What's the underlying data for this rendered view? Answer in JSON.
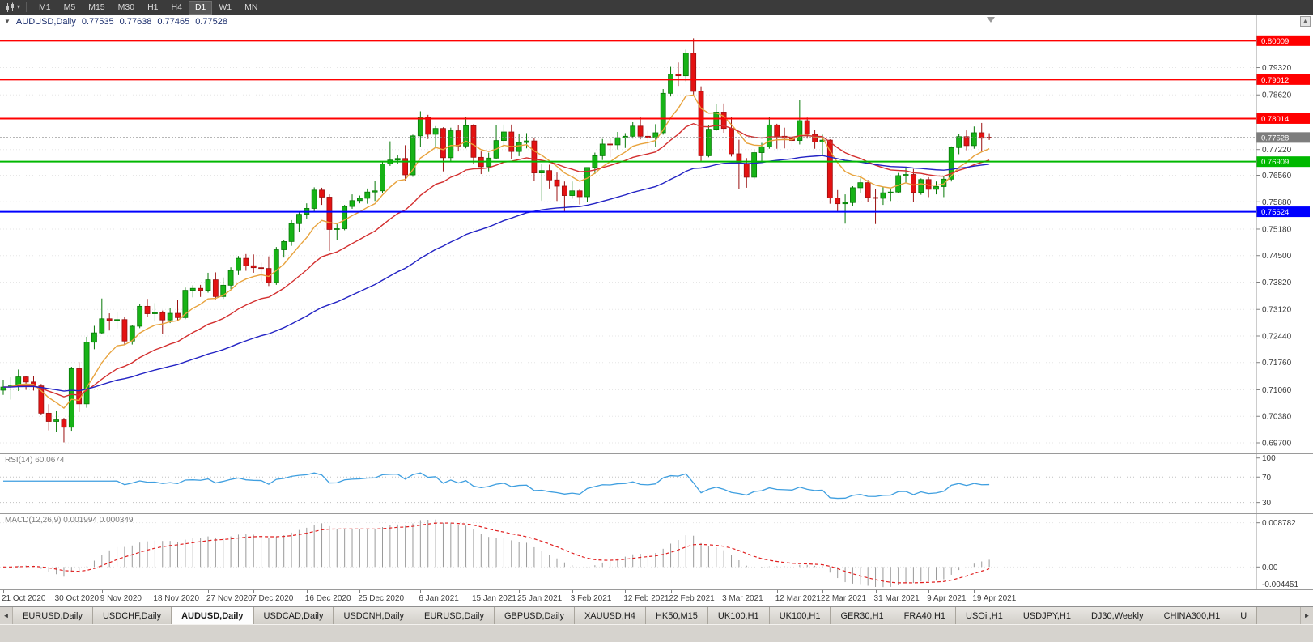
{
  "toolbar": {
    "timeframes": [
      "M1",
      "M5",
      "M15",
      "M30",
      "H1",
      "H4",
      "D1",
      "W1",
      "MN"
    ],
    "active_timeframe": "D1"
  },
  "icons": {
    "one_click_toggle": "▼",
    "chart_type_caret": "▾",
    "chart_scroll_up": "▲",
    "tab_scroll_left": "◄",
    "tab_scroll_right": "►"
  },
  "symbol_info": {
    "symbol": "AUDUSD,Daily",
    "open": "0.77535",
    "high": "0.77638",
    "low": "0.77465",
    "close": "0.77528"
  },
  "chart_data": {
    "type": "candlestick",
    "symbol": "AUDUSD",
    "timeframe": "Daily",
    "y_axis_labels": [
      "0.79320",
      "0.78620",
      "0.77220",
      "0.76560",
      "0.75880",
      "0.75180",
      "0.74500",
      "0.73820",
      "0.73120",
      "0.72440",
      "0.71760",
      "0.71060",
      "0.70380",
      "0.69700"
    ],
    "x_axis_labels": [
      {
        "i": 0,
        "label": "21 Oct 2020"
      },
      {
        "i": 7,
        "label": "30 Oct 2020"
      },
      {
        "i": 13,
        "label": "9 Nov 2020"
      },
      {
        "i": 20,
        "label": "18 Nov 2020"
      },
      {
        "i": 27,
        "label": "27 Nov 2020"
      },
      {
        "i": 33,
        "label": "7 Dec 2020"
      },
      {
        "i": 40,
        "label": "16 Dec 2020"
      },
      {
        "i": 47,
        "label": "25 Dec 2020"
      },
      {
        "i": 55,
        "label": "6 Jan 2021"
      },
      {
        "i": 62,
        "label": "15 Jan 2021"
      },
      {
        "i": 68,
        "label": "25 Jan 2021"
      },
      {
        "i": 75,
        "label": "3 Feb 2021"
      },
      {
        "i": 82,
        "label": "12 Feb 2021"
      },
      {
        "i": 88,
        "label": "22 Feb 2021"
      },
      {
        "i": 95,
        "label": "3 Mar 2021"
      },
      {
        "i": 102,
        "label": "12 Mar 2021"
      },
      {
        "i": 108,
        "label": "22 Mar 2021"
      },
      {
        "i": 115,
        "label": "31 Mar 2021"
      },
      {
        "i": 122,
        "label": "9 Apr 2021"
      },
      {
        "i": 128,
        "label": "19 Apr 2021"
      }
    ],
    "price_lines": [
      {
        "value": 0.80009,
        "label": "0.80009",
        "color": "#ff0000"
      },
      {
        "value": 0.79012,
        "label": "0.79012",
        "color": "#ff0000"
      },
      {
        "value": 0.78014,
        "label": "0.78014",
        "color": "#ff0000"
      },
      {
        "value": 0.76909,
        "label": "0.76909",
        "color": "#00b800"
      },
      {
        "value": 0.75624,
        "label": "0.75624",
        "color": "#0000ff"
      }
    ],
    "current_price": {
      "value": 0.77528,
      "label": "0.77528",
      "color": "#7d7d7d"
    },
    "moving_averages": [
      {
        "period": 8,
        "method": "ema",
        "color": "#e8a33d"
      },
      {
        "period": 21,
        "method": "ema",
        "color": "#d32f2f"
      },
      {
        "period": 55,
        "method": "ema",
        "color": "#2323c4"
      }
    ],
    "bull_color": "#17b317",
    "bear_color": "#e31212",
    "candles": [
      [
        0.7105,
        0.7132,
        0.7093,
        0.7113
      ],
      [
        0.7113,
        0.7138,
        0.7081,
        0.7116
      ],
      [
        0.7116,
        0.7158,
        0.7103,
        0.7139
      ],
      [
        0.7139,
        0.7142,
        0.7106,
        0.7126
      ],
      [
        0.7126,
        0.7141,
        0.7104,
        0.7116
      ],
      [
        0.7116,
        0.7121,
        0.7041,
        0.7046
      ],
      [
        0.7046,
        0.7069,
        0.7002,
        0.7025
      ],
      [
        0.7025,
        0.7051,
        0.6998,
        0.7029
      ],
      [
        0.7029,
        0.7034,
        0.6971,
        0.701
      ],
      [
        0.701,
        0.7165,
        0.7001,
        0.716
      ],
      [
        0.716,
        0.7177,
        0.7049,
        0.707
      ],
      [
        0.707,
        0.7242,
        0.706,
        0.7228
      ],
      [
        0.7228,
        0.727,
        0.721,
        0.7252
      ],
      [
        0.7252,
        0.734,
        0.725,
        0.7288
      ],
      [
        0.7288,
        0.7302,
        0.7258,
        0.7284
      ],
      [
        0.7284,
        0.7306,
        0.7263,
        0.7286
      ],
      [
        0.7286,
        0.7292,
        0.7221,
        0.7231
      ],
      [
        0.7231,
        0.7272,
        0.7222,
        0.7269
      ],
      [
        0.7269,
        0.7326,
        0.7264,
        0.732
      ],
      [
        0.732,
        0.7339,
        0.7293,
        0.7301
      ],
      [
        0.7301,
        0.7328,
        0.7281,
        0.7304
      ],
      [
        0.7304,
        0.7309,
        0.725,
        0.7285
      ],
      [
        0.7285,
        0.7315,
        0.7277,
        0.7302
      ],
      [
        0.7302,
        0.7336,
        0.7282,
        0.7291
      ],
      [
        0.7291,
        0.7368,
        0.7287,
        0.7361
      ],
      [
        0.7361,
        0.7374,
        0.7343,
        0.7366
      ],
      [
        0.7366,
        0.7375,
        0.7344,
        0.7361
      ],
      [
        0.7361,
        0.7406,
        0.7355,
        0.7388
      ],
      [
        0.7388,
        0.7407,
        0.7338,
        0.7345
      ],
      [
        0.7345,
        0.7394,
        0.7339,
        0.7374
      ],
      [
        0.7374,
        0.742,
        0.7364,
        0.7412
      ],
      [
        0.7412,
        0.7449,
        0.74,
        0.7443
      ],
      [
        0.7443,
        0.7454,
        0.7411,
        0.7424
      ],
      [
        0.7424,
        0.7453,
        0.7406,
        0.7419
      ],
      [
        0.7419,
        0.7432,
        0.7384,
        0.7417
      ],
      [
        0.7417,
        0.7448,
        0.7372,
        0.7381
      ],
      [
        0.7381,
        0.7472,
        0.7375,
        0.7465
      ],
      [
        0.7465,
        0.7491,
        0.7445,
        0.7486
      ],
      [
        0.7486,
        0.7541,
        0.7475,
        0.7532
      ],
      [
        0.7532,
        0.7563,
        0.751,
        0.7556
      ],
      [
        0.7556,
        0.7584,
        0.7545,
        0.7571
      ],
      [
        0.7571,
        0.7625,
        0.7562,
        0.7618
      ],
      [
        0.7618,
        0.7624,
        0.758,
        0.76
      ],
      [
        0.76,
        0.7607,
        0.7462,
        0.7517
      ],
      [
        0.7517,
        0.7534,
        0.749,
        0.7519
      ],
      [
        0.7519,
        0.758,
        0.7515,
        0.7576
      ],
      [
        0.7576,
        0.7607,
        0.757,
        0.7591
      ],
      [
        0.7591,
        0.7604,
        0.7584,
        0.7597
      ],
      [
        0.7597,
        0.7622,
        0.7583,
        0.7613
      ],
      [
        0.7613,
        0.7641,
        0.759,
        0.7616
      ],
      [
        0.7616,
        0.769,
        0.761,
        0.7685
      ],
      [
        0.7685,
        0.7743,
        0.768,
        0.7695
      ],
      [
        0.7695,
        0.7708,
        0.7685,
        0.7699
      ],
      [
        0.7699,
        0.7733,
        0.7642,
        0.7657
      ],
      [
        0.7657,
        0.776,
        0.7652,
        0.7757
      ],
      [
        0.7757,
        0.782,
        0.7728,
        0.7805
      ],
      [
        0.7805,
        0.7811,
        0.7749,
        0.7761
      ],
      [
        0.7761,
        0.7782,
        0.7726,
        0.7776
      ],
      [
        0.7776,
        0.7779,
        0.7666,
        0.7701
      ],
      [
        0.7701,
        0.7778,
        0.7692,
        0.777
      ],
      [
        0.777,
        0.7784,
        0.7717,
        0.7731
      ],
      [
        0.7731,
        0.7805,
        0.7725,
        0.7783
      ],
      [
        0.7783,
        0.7787,
        0.7684,
        0.7702
      ],
      [
        0.7702,
        0.7717,
        0.7659,
        0.7678
      ],
      [
        0.7678,
        0.7714,
        0.7666,
        0.77
      ],
      [
        0.77,
        0.7784,
        0.7698,
        0.7745
      ],
      [
        0.7745,
        0.7786,
        0.773,
        0.7767
      ],
      [
        0.7767,
        0.7786,
        0.7697,
        0.7717
      ],
      [
        0.7717,
        0.7763,
        0.7705,
        0.774
      ],
      [
        0.774,
        0.7764,
        0.7725,
        0.7744
      ],
      [
        0.7744,
        0.7751,
        0.7642,
        0.7662
      ],
      [
        0.7662,
        0.7686,
        0.7591,
        0.7668
      ],
      [
        0.7668,
        0.7683,
        0.7622,
        0.7644
      ],
      [
        0.7644,
        0.7663,
        0.759,
        0.7628
      ],
      [
        0.7628,
        0.764,
        0.7563,
        0.7604
      ],
      [
        0.7604,
        0.764,
        0.7596,
        0.7616
      ],
      [
        0.7616,
        0.7621,
        0.7581,
        0.7601
      ],
      [
        0.7601,
        0.7676,
        0.7588,
        0.7676
      ],
      [
        0.7676,
        0.7714,
        0.7659,
        0.7706
      ],
      [
        0.7706,
        0.7749,
        0.7695,
        0.7736
      ],
      [
        0.7736,
        0.7752,
        0.7702,
        0.7734
      ],
      [
        0.7734,
        0.7767,
        0.7722,
        0.7752
      ],
      [
        0.7752,
        0.7764,
        0.7726,
        0.7756
      ],
      [
        0.7756,
        0.7792,
        0.775,
        0.7782
      ],
      [
        0.7782,
        0.7805,
        0.7748,
        0.7756
      ],
      [
        0.7756,
        0.777,
        0.7723,
        0.7752
      ],
      [
        0.7752,
        0.7787,
        0.7729,
        0.7765
      ],
      [
        0.7765,
        0.7877,
        0.776,
        0.7866
      ],
      [
        0.7866,
        0.7934,
        0.7858,
        0.7915
      ],
      [
        0.7915,
        0.7945,
        0.7885,
        0.7911
      ],
      [
        0.7911,
        0.7978,
        0.7897,
        0.7969
      ],
      [
        0.7969,
        0.8007,
        0.7862,
        0.7871
      ],
      [
        0.7871,
        0.7884,
        0.7692,
        0.7706
      ],
      [
        0.7706,
        0.7784,
        0.7702,
        0.7774
      ],
      [
        0.7774,
        0.7838,
        0.777,
        0.7818
      ],
      [
        0.7818,
        0.784,
        0.7765,
        0.7776
      ],
      [
        0.7776,
        0.7805,
        0.7704,
        0.7711
      ],
      [
        0.7711,
        0.7747,
        0.7621,
        0.7686
      ],
      [
        0.7686,
        0.77,
        0.7624,
        0.7651
      ],
      [
        0.7651,
        0.7722,
        0.7646,
        0.7714
      ],
      [
        0.7714,
        0.7739,
        0.7688,
        0.7729
      ],
      [
        0.7729,
        0.7805,
        0.7724,
        0.7785
      ],
      [
        0.7785,
        0.7788,
        0.7724,
        0.7756
      ],
      [
        0.7756,
        0.7778,
        0.7725,
        0.7751
      ],
      [
        0.7751,
        0.7773,
        0.7727,
        0.7745
      ],
      [
        0.7745,
        0.7849,
        0.7735,
        0.7796
      ],
      [
        0.7796,
        0.7804,
        0.775,
        0.7761
      ],
      [
        0.7761,
        0.7772,
        0.7724,
        0.7741
      ],
      [
        0.7741,
        0.776,
        0.7705,
        0.7746
      ],
      [
        0.7746,
        0.7748,
        0.7583,
        0.7598
      ],
      [
        0.7598,
        0.7618,
        0.7562,
        0.7583
      ],
      [
        0.7583,
        0.7607,
        0.7532,
        0.7586
      ],
      [
        0.7586,
        0.7628,
        0.7577,
        0.7624
      ],
      [
        0.7624,
        0.7648,
        0.761,
        0.7637
      ],
      [
        0.7637,
        0.7644,
        0.7588,
        0.7599
      ],
      [
        0.7599,
        0.7621,
        0.7531,
        0.7597
      ],
      [
        0.7597,
        0.7626,
        0.758,
        0.7611
      ],
      [
        0.7611,
        0.7621,
        0.759,
        0.7613
      ],
      [
        0.7613,
        0.7662,
        0.761,
        0.7655
      ],
      [
        0.7655,
        0.7677,
        0.7637,
        0.7658
      ],
      [
        0.7658,
        0.7672,
        0.7588,
        0.7612
      ],
      [
        0.7612,
        0.7648,
        0.7606,
        0.7645
      ],
      [
        0.7645,
        0.7651,
        0.76,
        0.762
      ],
      [
        0.762,
        0.764,
        0.7607,
        0.7627
      ],
      [
        0.7627,
        0.7655,
        0.76,
        0.7646
      ],
      [
        0.7646,
        0.773,
        0.764,
        0.7727
      ],
      [
        0.7727,
        0.7761,
        0.771,
        0.7755
      ],
      [
        0.7755,
        0.7771,
        0.772,
        0.7732
      ],
      [
        0.7732,
        0.7781,
        0.7724,
        0.7765
      ],
      [
        0.7765,
        0.779,
        0.7717,
        0.7751
      ],
      [
        0.77535,
        0.77638,
        0.77465,
        0.77528
      ]
    ],
    "rsi": {
      "label_text": "RSI(14) 60.0674",
      "period": 14,
      "current": 60.0674,
      "levels": [
        "100",
        "70",
        "30"
      ],
      "level_values": [
        100,
        70,
        30
      ],
      "color": "#3f9fe0"
    },
    "macd": {
      "label_text": "MACD(12,26,9) 0.001994 0.000349",
      "fast": 12,
      "slow": 26,
      "signal": 9,
      "current_macd": 0.001994,
      "current_signal": 0.000349,
      "axis_labels": [
        "0.008782",
        "0.00",
        "-0.004451"
      ],
      "axis_values": [
        0.008782,
        0,
        -0.004451
      ],
      "histogram_color": "#9a9a9a",
      "signal_color": "#e02020"
    }
  },
  "bottom_tabs": {
    "tabs": [
      {
        "label": "EURUSD,Daily",
        "active": false
      },
      {
        "label": "USDCHF,Daily",
        "active": false
      },
      {
        "label": "AUDUSD,Daily",
        "active": true
      },
      {
        "label": "USDCAD,Daily",
        "active": false
      },
      {
        "label": "USDCNH,Daily",
        "active": false
      },
      {
        "label": "EURUSD,Daily",
        "active": false
      },
      {
        "label": "GBPUSD,Daily",
        "active": false
      },
      {
        "label": "XAUUSD,H4",
        "active": false
      },
      {
        "label": "HK50,M15",
        "active": false
      },
      {
        "label": "UK100,H1",
        "active": false
      },
      {
        "label": "UK100,H1",
        "active": false
      },
      {
        "label": "GER30,H1",
        "active": false
      },
      {
        "label": "FRA40,H1",
        "active": false
      },
      {
        "label": "USOil,H1",
        "active": false
      },
      {
        "label": "USDJPY,H1",
        "active": false
      },
      {
        "label": "DJ30,Weekly",
        "active": false
      },
      {
        "label": "CHINA300,H1",
        "active": false
      },
      {
        "label": "U",
        "active": false
      }
    ]
  }
}
